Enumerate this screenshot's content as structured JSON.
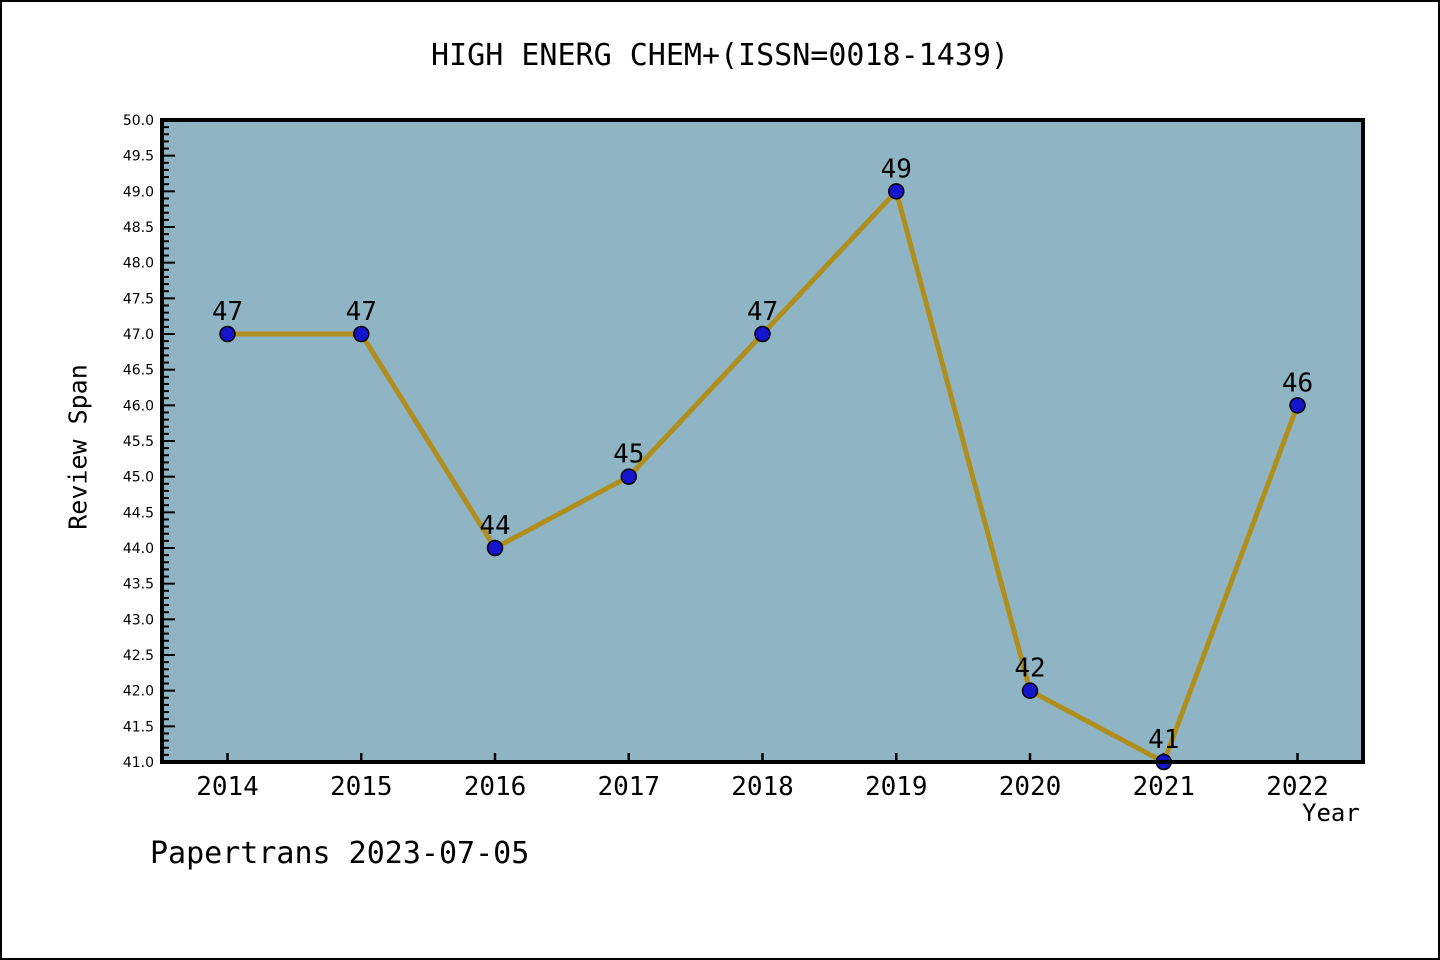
{
  "title": "HIGH ENERG CHEM+(ISSN=0018-1439)",
  "footer": "Papertrans 2023-07-05",
  "chart_data": {
    "type": "line",
    "title": "HIGH ENERG CHEM+(ISSN=0018-1439)",
    "x": [
      2014,
      2015,
      2016,
      2017,
      2018,
      2019,
      2020,
      2021,
      2022
    ],
    "values": [
      47,
      47,
      44,
      45,
      47,
      49,
      42,
      41,
      46
    ],
    "xlabel": "Year",
    "ylabel": "Review Span",
    "ylim": [
      41.0,
      50.0
    ],
    "ytick_step": 0.5,
    "ytick_minor_step": 0.1,
    "grid": false,
    "legend": "none",
    "point_labels": [
      "47",
      "47",
      "44",
      "45",
      "47",
      "49",
      "42",
      "41",
      "46"
    ],
    "colors": {
      "line": "#B08E1E",
      "marker": "#1414CC",
      "marker_edge": "#000000",
      "plot_background": "#8FB5C4",
      "figure_background": "#FFFFFF",
      "axis": "#000000",
      "text": "#000000"
    }
  }
}
